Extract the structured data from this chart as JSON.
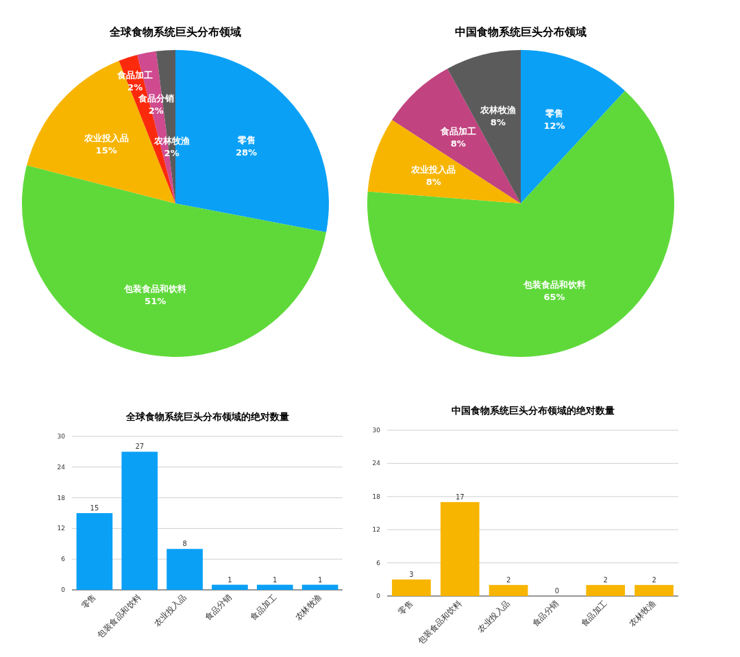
{
  "chart_data": [
    {
      "type": "pie",
      "title": "全球食物系统巨头分布领域",
      "categories": [
        "零售",
        "包装食品和饮料",
        "农业投入品",
        "食品加工",
        "食品分销",
        "农林牧渔"
      ],
      "values": [
        28,
        51,
        15,
        2,
        2,
        2
      ],
      "value_labels": [
        "28%",
        "51%",
        "15%",
        "2%",
        "2%",
        "2%"
      ],
      "colors": [
        "#0aa0f6",
        "#5fd93a",
        "#f7b500",
        "#fb2a0c",
        "#cf4a8e",
        "#5b5b5b"
      ]
    },
    {
      "type": "pie",
      "title": "中国食物系统巨头分布领域",
      "categories": [
        "零售",
        "包装食品和饮料",
        "农业投入品",
        "食品加工",
        "农林牧渔"
      ],
      "values": [
        12,
        65,
        8,
        8,
        8
      ],
      "value_labels": [
        "12%",
        "65%",
        "8%",
        "8%",
        "8%"
      ],
      "colors": [
        "#0aa0f6",
        "#5fd93a",
        "#f7b500",
        "#c1437f",
        "#5b5b5b"
      ]
    },
    {
      "type": "bar",
      "title": "全球食物系统巨头分布领域的绝对数量",
      "categories": [
        "零售",
        "包装食品和饮料",
        "农业投入品",
        "食品分销",
        "食品加工",
        "农林牧渔"
      ],
      "values": [
        15,
        27,
        8,
        1,
        1,
        1
      ],
      "color": "#0aa0f6",
      "ylim": [
        0,
        30
      ],
      "yticks": [
        0,
        6,
        12,
        18,
        24,
        30
      ],
      "grid": "y",
      "data_labels": true
    },
    {
      "type": "bar",
      "title": "中国食物系统巨头分布领域的绝对数量",
      "categories": [
        "零售",
        "包装食品和饮料",
        "农业投入品",
        "食品分销",
        "食品加工",
        "农林牧渔"
      ],
      "values": [
        3,
        17,
        2,
        0,
        2,
        2
      ],
      "color": "#f7b500",
      "ylim": [
        0,
        30
      ],
      "yticks": [
        0,
        6,
        12,
        18,
        24,
        30
      ],
      "grid": "y",
      "data_labels": true
    }
  ]
}
